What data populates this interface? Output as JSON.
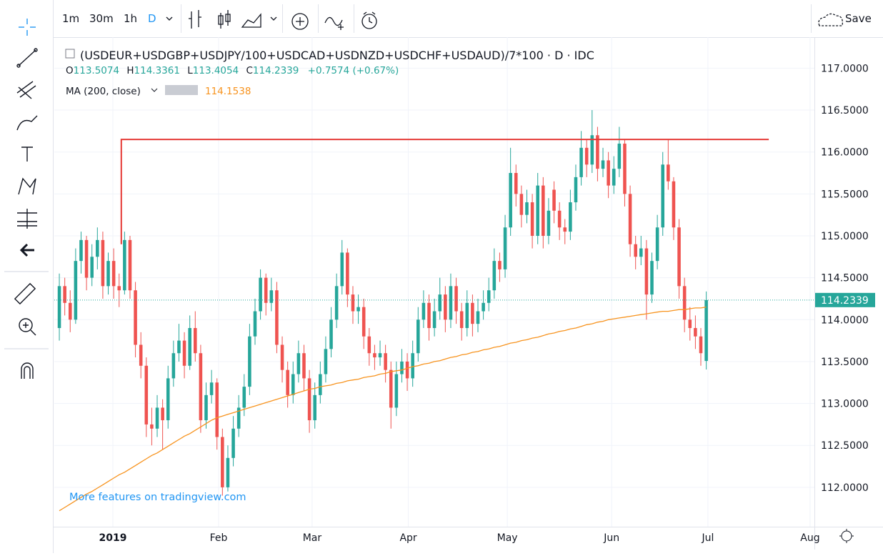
{
  "toolbar": {
    "intervals": [
      "1m",
      "30m",
      "1h",
      "D"
    ],
    "save": "Save"
  },
  "chart_data": {
    "type": "candlestick",
    "title": "(USDEUR+USDGBP+USDJPY/100+USDCAD+USDNZD+USDCHF+USDAUD)/7*100 · D · IDC",
    "ohlc_labels": [
      "O",
      "H",
      "L",
      "C"
    ],
    "ohlc": [
      113.5074,
      114.3361,
      113.4054,
      114.2339
    ],
    "change": "+0.7574 (+0.67%)",
    "watermark": "More features on tradingview.com",
    "up_color": "#26a69a",
    "down_color": "#ef5350",
    "last_price": 114.2339,
    "ylim": [
      111.53,
      117.37
    ],
    "yticks": [
      {
        "value": 112,
        "label": "112.0000"
      },
      {
        "value": 112.5,
        "label": "112.5000"
      },
      {
        "value": 113,
        "label": "113.0000"
      },
      {
        "value": 113.5,
        "label": "113.5000"
      },
      {
        "value": 114,
        "label": "114.0000"
      },
      {
        "value": 114.5,
        "label": "114.5000"
      },
      {
        "value": 115,
        "label": "115.0000"
      },
      {
        "value": 115.5,
        "label": "115.5000"
      },
      {
        "value": 116,
        "label": "116.0000"
      },
      {
        "value": 116.5,
        "label": "116.5000"
      },
      {
        "value": 117,
        "label": "117.0000"
      }
    ],
    "xlim": [
      -0.4,
      138.5
    ],
    "xticks": [
      {
        "value": 9.85,
        "label": "2019"
      },
      {
        "value": 29.3,
        "label": "Feb"
      },
      {
        "value": 46.5,
        "label": "Mar"
      },
      {
        "value": 64.2,
        "label": "Apr"
      },
      {
        "value": 82.4,
        "label": "May"
      },
      {
        "value": 101.6,
        "label": "Jun"
      },
      {
        "value": 119.3,
        "label": "Jul"
      },
      {
        "value": 138.1,
        "label": "Aug"
      }
    ],
    "grid": true,
    "level": {
      "value": 116.15,
      "from": 11.4,
      "to": 130.5,
      "drop_to": 114.9,
      "color": "#e53935"
    },
    "indicator": {
      "name": "MA (200, close)",
      "value": 114.1538,
      "color": "#f7931e",
      "values": [
        111.72,
        111.76,
        111.8,
        111.84,
        111.88,
        111.92,
        111.95,
        111.99,
        112.03,
        112.07,
        112.11,
        112.15,
        112.18,
        112.22,
        112.26,
        112.3,
        112.34,
        112.38,
        112.41,
        112.45,
        112.49,
        112.53,
        112.57,
        112.61,
        112.64,
        112.68,
        112.72,
        112.76,
        112.8,
        112.83,
        112.85,
        112.87,
        112.89,
        112.91,
        112.93,
        112.95,
        112.97,
        112.99,
        113.01,
        113.03,
        113.05,
        113.07,
        113.09,
        113.11,
        113.13,
        113.15,
        113.17,
        113.18,
        113.2,
        113.21,
        113.22,
        113.24,
        113.25,
        113.27,
        113.28,
        113.29,
        113.31,
        113.32,
        113.33,
        113.35,
        113.36,
        113.38,
        113.39,
        113.4,
        113.42,
        113.44,
        113.45,
        113.47,
        113.48,
        113.5,
        113.51,
        113.53,
        113.55,
        113.56,
        113.58,
        113.59,
        113.61,
        113.62,
        113.64,
        113.65,
        113.67,
        113.68,
        113.7,
        113.72,
        113.73,
        113.75,
        113.76,
        113.78,
        113.79,
        113.81,
        113.83,
        113.84,
        113.86,
        113.87,
        113.89,
        113.9,
        113.92,
        113.94,
        113.95,
        113.97,
        113.98,
        114.0,
        114.01,
        114.02,
        114.03,
        114.04,
        114.05,
        114.06,
        114.07,
        114.08,
        114.09,
        114.1,
        114.1,
        114.11,
        114.12,
        114.12,
        114.13,
        114.14,
        114.14,
        114.15
      ]
    },
    "candles": [
      [
        113.9,
        114.55,
        113.75,
        114.4
      ],
      [
        114.4,
        114.5,
        114.05,
        114.2
      ],
      [
        114.2,
        114.35,
        113.85,
        114.0
      ],
      [
        114.0,
        114.85,
        113.95,
        114.7
      ],
      [
        114.7,
        115.05,
        114.55,
        114.95
      ],
      [
        114.95,
        115.0,
        114.35,
        114.5
      ],
      [
        114.5,
        114.9,
        114.4,
        114.75
      ],
      [
        114.75,
        115.1,
        114.6,
        114.95
      ],
      [
        114.95,
        115.05,
        114.25,
        114.4
      ],
      [
        114.4,
        114.8,
        114.3,
        114.7
      ],
      [
        114.7,
        114.85,
        114.25,
        114.4
      ],
      [
        114.4,
        114.55,
        114.15,
        114.35
      ],
      [
        114.35,
        115.05,
        114.3,
        114.95
      ],
      [
        114.95,
        115.0,
        114.25,
        114.35
      ],
      [
        114.35,
        114.45,
        113.55,
        113.7
      ],
      [
        113.7,
        113.85,
        113.3,
        113.45
      ],
      [
        113.45,
        113.55,
        112.6,
        112.75
      ],
      [
        112.75,
        112.95,
        112.5,
        112.7
      ],
      [
        112.7,
        113.1,
        112.6,
        112.95
      ],
      [
        112.95,
        113.05,
        112.45,
        112.8
      ],
      [
        112.8,
        113.45,
        112.7,
        113.3
      ],
      [
        113.3,
        113.75,
        113.2,
        113.6
      ],
      [
        113.6,
        113.95,
        113.5,
        113.75
      ],
      [
        113.75,
        113.85,
        113.3,
        113.45
      ],
      [
        113.45,
        114.05,
        113.4,
        113.9
      ],
      [
        113.9,
        114.1,
        113.5,
        113.6
      ],
      [
        113.6,
        113.7,
        112.65,
        112.8
      ],
      [
        112.8,
        113.25,
        112.7,
        113.1
      ],
      [
        113.1,
        113.4,
        113.0,
        113.25
      ],
      [
        113.25,
        113.3,
        112.45,
        112.6
      ],
      [
        112.6,
        112.7,
        111.9,
        112.0
      ],
      [
        112.0,
        112.5,
        111.95,
        112.35
      ],
      [
        112.35,
        112.85,
        112.25,
        112.7
      ],
      [
        112.7,
        113.1,
        112.6,
        112.95
      ],
      [
        112.95,
        113.35,
        112.85,
        113.2
      ],
      [
        113.2,
        113.95,
        113.1,
        113.8
      ],
      [
        113.8,
        114.25,
        113.7,
        114.1
      ],
      [
        114.1,
        114.6,
        114.0,
        114.5
      ],
      [
        114.5,
        114.55,
        114.05,
        114.2
      ],
      [
        114.2,
        114.5,
        114.1,
        114.35
      ],
      [
        114.35,
        114.45,
        113.6,
        113.7
      ],
      [
        113.7,
        113.8,
        113.25,
        113.4
      ],
      [
        113.4,
        113.5,
        112.95,
        113.1
      ],
      [
        113.1,
        113.5,
        113.0,
        113.35
      ],
      [
        113.35,
        113.75,
        113.25,
        113.6
      ],
      [
        113.6,
        113.7,
        113.15,
        113.3
      ],
      [
        113.3,
        113.4,
        112.65,
        112.8
      ],
      [
        112.8,
        113.25,
        112.7,
        113.1
      ],
      [
        113.1,
        113.5,
        113.0,
        113.35
      ],
      [
        113.35,
        113.8,
        113.25,
        113.65
      ],
      [
        113.65,
        114.15,
        113.55,
        114.0
      ],
      [
        114.0,
        114.55,
        113.9,
        114.4
      ],
      [
        114.4,
        114.95,
        114.3,
        114.8
      ],
      [
        114.8,
        114.85,
        114.15,
        114.3
      ],
      [
        114.3,
        114.4,
        113.95,
        114.1
      ],
      [
        114.1,
        114.3,
        113.95,
        114.15
      ],
      [
        114.15,
        114.25,
        113.65,
        113.8
      ],
      [
        113.8,
        113.9,
        113.45,
        113.6
      ],
      [
        113.6,
        113.7,
        113.4,
        113.55
      ],
      [
        113.55,
        113.75,
        113.45,
        113.6
      ],
      [
        113.6,
        113.7,
        113.25,
        113.4
      ],
      [
        113.4,
        113.5,
        112.7,
        112.95
      ],
      [
        112.95,
        113.5,
        112.85,
        113.35
      ],
      [
        113.35,
        113.65,
        113.25,
        113.5
      ],
      [
        113.5,
        113.6,
        113.15,
        113.3
      ],
      [
        113.3,
        113.75,
        113.2,
        113.6
      ],
      [
        113.6,
        114.15,
        113.5,
        114.0
      ],
      [
        114.0,
        114.35,
        113.9,
        114.2
      ],
      [
        114.2,
        114.3,
        113.75,
        113.9
      ],
      [
        113.9,
        114.25,
        113.8,
        114.1
      ],
      [
        114.1,
        114.5,
        114.0,
        114.3
      ],
      [
        114.3,
        114.4,
        113.85,
        114.0
      ],
      [
        114.0,
        114.55,
        113.9,
        114.4
      ],
      [
        114.4,
        114.5,
        113.95,
        114.1
      ],
      [
        114.1,
        114.2,
        113.75,
        113.9
      ],
      [
        113.9,
        114.35,
        113.8,
        114.2
      ],
      [
        114.2,
        114.3,
        113.8,
        113.95
      ],
      [
        113.95,
        114.25,
        113.85,
        114.1
      ],
      [
        114.1,
        114.35,
        114.0,
        114.2
      ],
      [
        114.2,
        114.5,
        114.1,
        114.35
      ],
      [
        114.35,
        114.85,
        114.25,
        114.7
      ],
      [
        114.7,
        114.8,
        114.45,
        114.6
      ],
      [
        114.6,
        115.25,
        114.5,
        115.1
      ],
      [
        115.1,
        116.05,
        115.0,
        115.75
      ],
      [
        115.75,
        115.85,
        115.35,
        115.5
      ],
      [
        115.5,
        115.6,
        115.1,
        115.25
      ],
      [
        115.25,
        115.55,
        115.15,
        115.4
      ],
      [
        115.4,
        115.5,
        114.85,
        115.0
      ],
      [
        115.0,
        115.75,
        114.9,
        115.6
      ],
      [
        115.6,
        115.7,
        114.85,
        115.0
      ],
      [
        115.0,
        115.45,
        114.9,
        115.3
      ],
      [
        115.55,
        115.65,
        115.15,
        115.3
      ],
      [
        115.3,
        115.4,
        114.95,
        115.1
      ],
      [
        115.1,
        115.2,
        114.9,
        115.05
      ],
      [
        115.05,
        115.55,
        114.95,
        115.4
      ],
      [
        115.4,
        115.85,
        115.3,
        115.7
      ],
      [
        115.7,
        116.25,
        115.6,
        116.05
      ],
      [
        116.05,
        116.15,
        115.7,
        115.85
      ],
      [
        115.85,
        116.5,
        115.75,
        116.2
      ],
      [
        116.2,
        116.3,
        115.65,
        115.8
      ],
      [
        115.8,
        116.05,
        115.7,
        115.9
      ],
      [
        115.9,
        116.0,
        115.45,
        115.6
      ],
      [
        115.6,
        115.95,
        115.5,
        115.8
      ],
      [
        115.8,
        116.3,
        115.7,
        116.1
      ],
      [
        116.1,
        116.15,
        115.35,
        115.5
      ],
      [
        115.5,
        115.6,
        114.75,
        114.9
      ],
      [
        114.9,
        115.0,
        114.6,
        114.75
      ],
      [
        114.75,
        115.0,
        114.65,
        114.85
      ],
      [
        114.85,
        114.95,
        114.0,
        114.3
      ],
      [
        114.3,
        114.8,
        114.2,
        114.7
      ],
      [
        114.7,
        115.25,
        114.6,
        115.1
      ],
      [
        115.1,
        116.0,
        115.0,
        115.85
      ],
      [
        115.85,
        116.15,
        115.55,
        115.65
      ],
      [
        115.65,
        115.7,
        114.95,
        115.1
      ],
      [
        115.1,
        115.2,
        114.25,
        114.4
      ],
      [
        114.4,
        114.5,
        113.85,
        114.0
      ],
      [
        114.0,
        114.15,
        113.75,
        113.9
      ],
      [
        113.9,
        114.05,
        113.65,
        113.8
      ],
      [
        113.8,
        113.9,
        113.45,
        113.6
      ],
      [
        113.5074,
        114.3361,
        113.4054,
        114.2339
      ]
    ]
  }
}
